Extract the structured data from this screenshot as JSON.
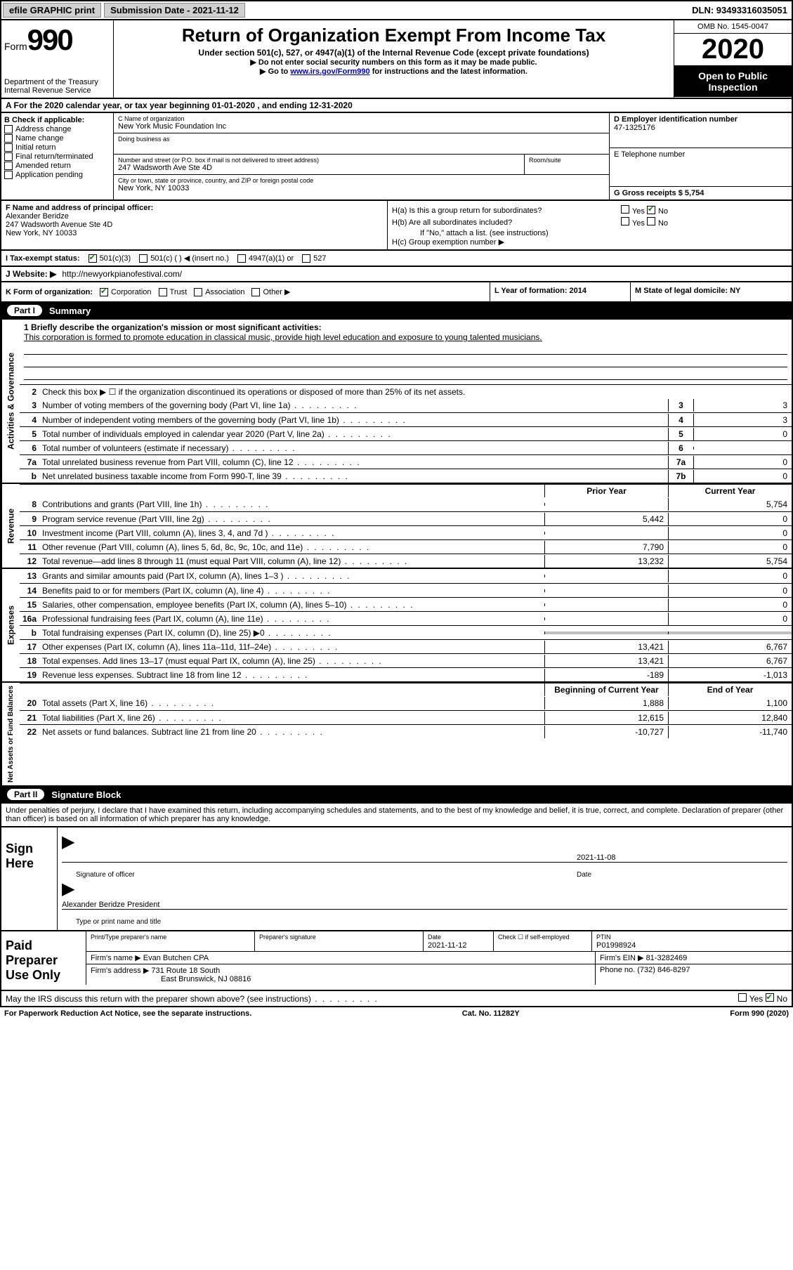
{
  "topbar": {
    "efile_print": "efile GRAPHIC print",
    "submission_label": "Submission Date - 2021-11-12",
    "dln_label": "DLN: 93493316035051"
  },
  "header": {
    "form_word": "Form",
    "form_num": "990",
    "dept": "Department of the Treasury\nInternal Revenue Service",
    "title": "Return of Organization Exempt From Income Tax",
    "subtitle": "Under section 501(c), 527, or 4947(a)(1) of the Internal Revenue Code (except private foundations)",
    "note1": "▶ Do not enter social security numbers on this form as it may be made public.",
    "note2_pre": "▶ Go to ",
    "note2_link": "www.irs.gov/Form990",
    "note2_post": " for instructions and the latest information.",
    "omb": "OMB No. 1545-0047",
    "year": "2020",
    "inspect": "Open to Public Inspection"
  },
  "rowA": "A For the 2020 calendar year, or tax year beginning 01-01-2020    , and ending 12-31-2020",
  "boxB": {
    "label": "B Check if applicable:",
    "items": [
      "Address change",
      "Name change",
      "Initial return",
      "Final return/terminated",
      "Amended return",
      "Application pending"
    ]
  },
  "boxC": {
    "name_lbl": "C Name of organization",
    "name": "New York Music Foundation Inc",
    "dba_lbl": "Doing business as",
    "addr_lbl": "Number and street (or P.O. box if mail is not delivered to street address)",
    "room_lbl": "Room/suite",
    "addr": "247 Wadsworth Ave Ste 4D",
    "city_lbl": "City or town, state or province, country, and ZIP or foreign postal code",
    "city": "New York, NY  10033"
  },
  "boxD": {
    "lbl": "D Employer identification number",
    "val": "47-1325176"
  },
  "boxE": {
    "lbl": "E Telephone number",
    "val": ""
  },
  "boxG": {
    "lbl": "G Gross receipts $ 5,754"
  },
  "boxF": {
    "lbl": "F Name and address of principal officer:",
    "line1": "Alexander Beridze",
    "line2": "247 Wadsworth Avenue Ste 4D",
    "line3": "New York, NY  10033"
  },
  "boxH": {
    "a": "H(a)  Is this a group return for subordinates?",
    "a_no": "No",
    "b": "H(b)  Are all subordinates included?",
    "b_note": "If \"No,\" attach a list. (see instructions)",
    "c": "H(c)  Group exemption number ▶"
  },
  "taxI": {
    "label": "I   Tax-exempt status:",
    "o501c3": "501(c)(3)",
    "o501c": "501(c) (  ) ◀ (insert no.)",
    "o4947": "4947(a)(1) or",
    "o527": "527"
  },
  "boxJ": {
    "lbl": "J   Website: ▶",
    "url": "http://newyorkpianofestival.com/"
  },
  "boxK": {
    "lbl": "K Form of organization:",
    "corp": "Corporation",
    "trust": "Trust",
    "assoc": "Association",
    "other": "Other ▶"
  },
  "boxL": {
    "lbl": "L Year of formation: 2014"
  },
  "boxM": {
    "lbl": "M State of legal domicile: NY"
  },
  "partI": {
    "pill": "Part I",
    "title": "Summary"
  },
  "summary": {
    "q1_lbl": "1  Briefly describe the organization's mission or most significant activities:",
    "q1_text": "This corporation is formed to promote education in classical music, provide high level education and exposure to young talented musicians.",
    "q2": "Check this box ▶ ☐ if the organization discontinued its operations or disposed of more than 25% of its net assets.",
    "lines_gov": [
      {
        "n": "3",
        "d": "Number of voting members of the governing body (Part VI, line 1a)",
        "box": "3",
        "v": "3"
      },
      {
        "n": "4",
        "d": "Number of independent voting members of the governing body (Part VI, line 1b)",
        "box": "4",
        "v": "3"
      },
      {
        "n": "5",
        "d": "Total number of individuals employed in calendar year 2020 (Part V, line 2a)",
        "box": "5",
        "v": "0"
      },
      {
        "n": "6",
        "d": "Total number of volunteers (estimate if necessary)",
        "box": "6",
        "v": ""
      },
      {
        "n": "7a",
        "d": "Total unrelated business revenue from Part VIII, column (C), line 12",
        "box": "7a",
        "v": "0"
      },
      {
        "n": "b",
        "d": "Net unrelated business taxable income from Form 990-T, line 39",
        "box": "7b",
        "v": "0"
      }
    ],
    "col_prior": "Prior Year",
    "col_current": "Current Year",
    "lines_rev": [
      {
        "n": "8",
        "d": "Contributions and grants (Part VIII, line 1h)",
        "p": "",
        "c": "5,754"
      },
      {
        "n": "9",
        "d": "Program service revenue (Part VIII, line 2g)",
        "p": "5,442",
        "c": "0"
      },
      {
        "n": "10",
        "d": "Investment income (Part VIII, column (A), lines 3, 4, and 7d )",
        "p": "",
        "c": "0"
      },
      {
        "n": "11",
        "d": "Other revenue (Part VIII, column (A), lines 5, 6d, 8c, 9c, 10c, and 11e)",
        "p": "7,790",
        "c": "0"
      },
      {
        "n": "12",
        "d": "Total revenue—add lines 8 through 11 (must equal Part VIII, column (A), line 12)",
        "p": "13,232",
        "c": "5,754"
      }
    ],
    "lines_exp": [
      {
        "n": "13",
        "d": "Grants and similar amounts paid (Part IX, column (A), lines 1–3 )",
        "p": "",
        "c": "0"
      },
      {
        "n": "14",
        "d": "Benefits paid to or for members (Part IX, column (A), line 4)",
        "p": "",
        "c": "0"
      },
      {
        "n": "15",
        "d": "Salaries, other compensation, employee benefits (Part IX, column (A), lines 5–10)",
        "p": "",
        "c": "0"
      },
      {
        "n": "16a",
        "d": "Professional fundraising fees (Part IX, column (A), line 11e)",
        "p": "",
        "c": "0"
      },
      {
        "n": "b",
        "d": "Total fundraising expenses (Part IX, column (D), line 25) ▶0",
        "p": "SHADE",
        "c": "SHADE"
      },
      {
        "n": "17",
        "d": "Other expenses (Part IX, column (A), lines 11a–11d, 11f–24e)",
        "p": "13,421",
        "c": "6,767"
      },
      {
        "n": "18",
        "d": "Total expenses. Add lines 13–17 (must equal Part IX, column (A), line 25)",
        "p": "13,421",
        "c": "6,767"
      },
      {
        "n": "19",
        "d": "Revenue less expenses. Subtract line 18 from line 12",
        "p": "-189",
        "c": "-1,013"
      }
    ],
    "col_begin": "Beginning of Current Year",
    "col_end": "End of Year",
    "lines_net": [
      {
        "n": "20",
        "d": "Total assets (Part X, line 16)",
        "p": "1,888",
        "c": "1,100"
      },
      {
        "n": "21",
        "d": "Total liabilities (Part X, line 26)",
        "p": "12,615",
        "c": "12,840"
      },
      {
        "n": "22",
        "d": "Net assets or fund balances. Subtract line 21 from line 20",
        "p": "-10,727",
        "c": "-11,740"
      }
    ]
  },
  "partII": {
    "pill": "Part II",
    "title": "Signature Block"
  },
  "sig_declare": "Under penalties of perjury, I declare that I have examined this return, including accompanying schedules and statements, and to the best of my knowledge and belief, it is true, correct, and complete. Declaration of preparer (other than officer) is based on all information of which preparer has any knowledge.",
  "sign_here": {
    "label": "Sign Here",
    "sig_officer": "Signature of officer",
    "date": "2021-11-08",
    "date_lbl": "Date",
    "name_title": "Alexander Beridze President",
    "type_lbl": "Type or print name and title"
  },
  "paid_prep": {
    "label": "Paid Preparer Use Only",
    "print_lbl": "Print/Type preparer's name",
    "sig_lbl": "Preparer's signature",
    "date_lbl": "Date",
    "date": "2021-11-12",
    "check_lbl": "Check ☐ if self-employed",
    "ptin_lbl": "PTIN",
    "ptin": "P01998924",
    "firm_name_lbl": "Firm's name   ▶",
    "firm_name": "Evan Butchen CPA",
    "firm_ein_lbl": "Firm's EIN ▶",
    "firm_ein": "81-3282469",
    "firm_addr_lbl": "Firm's address ▶",
    "firm_addr1": "731 Route 18 South",
    "firm_addr2": "East Brunswick, NJ  08816",
    "phone_lbl": "Phone no.",
    "phone": "(732) 846-8297"
  },
  "irs_discuss": "May the IRS discuss this return with the preparer shown above? (see instructions)",
  "irs_yes": "Yes",
  "irs_no": "No",
  "footer": {
    "left": "For Paperwork Reduction Act Notice, see the separate instructions.",
    "mid": "Cat. No. 11282Y",
    "right": "Form 990 (2020)"
  }
}
